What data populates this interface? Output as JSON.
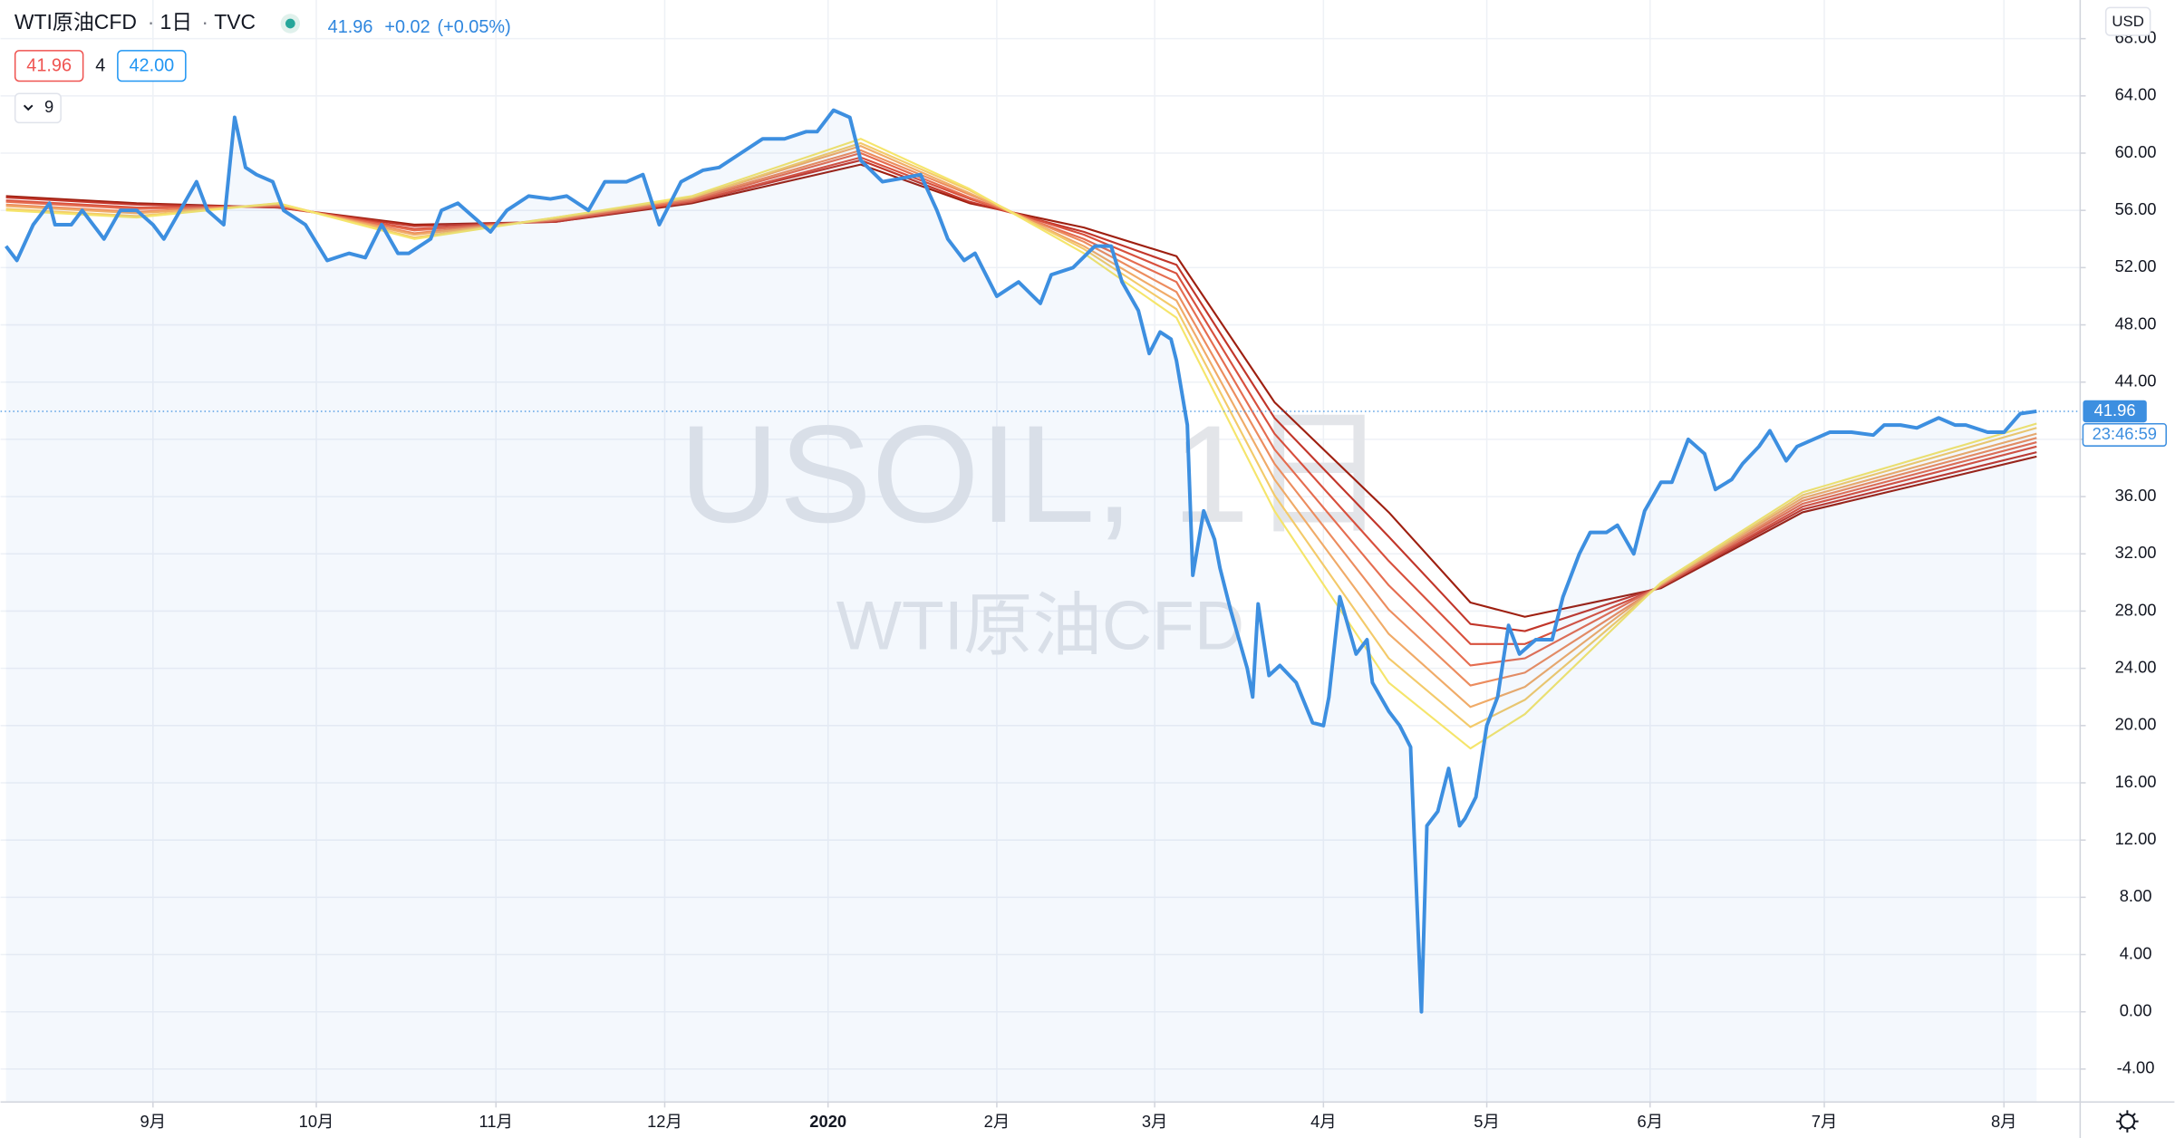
{
  "header": {
    "symbol": "WTI原油CFD",
    "interval": "1日",
    "exchange": "TVC",
    "price": "41.96",
    "change": "+0.02",
    "change_pct": "(+0.05%)",
    "bid": "41.96",
    "spread": "4",
    "ask": "42.00",
    "indicator_count": "9",
    "currency": "USD",
    "countdown": "23:46:59",
    "watermark_title": "USOIL, 1日",
    "watermark_subtitle": "WTI原油CFD"
  },
  "chart_data": {
    "type": "line",
    "xlim": [
      3,
      385
    ],
    "ylim": [
      -6.3,
      70.7
    ],
    "xticks": [
      {
        "value": 31,
        "label": "9月"
      },
      {
        "value": 61,
        "label": "10月"
      },
      {
        "value": 94,
        "label": "11月"
      },
      {
        "value": 125,
        "label": "12月"
      },
      {
        "value": 155,
        "label": "2020"
      },
      {
        "value": 186,
        "label": "2月"
      },
      {
        "value": 215,
        "label": "3月"
      },
      {
        "value": 246,
        "label": "4月"
      },
      {
        "value": 276,
        "label": "5月"
      },
      {
        "value": 306,
        "label": "6月"
      },
      {
        "value": 338,
        "label": "7月"
      },
      {
        "value": 371,
        "label": "8月"
      }
    ],
    "yticks": [
      {
        "value": -4,
        "label": "-4.00"
      },
      {
        "value": 0,
        "label": "0.00"
      },
      {
        "value": 4,
        "label": "4.00"
      },
      {
        "value": 8,
        "label": "8.00"
      },
      {
        "value": 12,
        "label": "12.00"
      },
      {
        "value": 16,
        "label": "16.00"
      },
      {
        "value": 20,
        "label": "20.00"
      },
      {
        "value": 24,
        "label": "24.00"
      },
      {
        "value": 28,
        "label": "28.00"
      },
      {
        "value": 32,
        "label": "32.00"
      },
      {
        "value": 36,
        "label": "36.00"
      },
      {
        "value": 40,
        "label": "40.00"
      },
      {
        "value": 44,
        "label": "44.00"
      },
      {
        "value": 48,
        "label": "48.00"
      },
      {
        "value": 52,
        "label": "52.00"
      },
      {
        "value": 56,
        "label": "56.00"
      },
      {
        "value": 60,
        "label": "60.00"
      },
      {
        "value": 64,
        "label": "64.00"
      },
      {
        "value": 68,
        "label": "68.00"
      }
    ],
    "grid": true,
    "last_price": 41.96,
    "series": [
      {
        "color": "#3d8fe0",
        "area": true,
        "x": [
          4,
          6,
          9,
          12,
          13,
          16,
          18,
          22,
          25,
          28,
          31,
          33,
          36,
          39,
          41,
          44,
          46,
          48,
          50,
          53,
          55,
          59,
          63,
          67,
          70,
          73,
          76,
          78,
          82,
          84,
          87,
          90,
          93,
          96,
          100,
          104,
          107,
          111,
          114,
          118,
          121,
          124,
          128,
          132,
          135,
          139,
          143,
          147,
          151,
          153,
          156,
          159,
          161,
          165,
          168,
          172,
          175,
          177,
          180,
          182,
          186,
          190,
          194,
          196,
          200,
          204,
          207,
          209,
          212,
          214,
          216,
          218,
          219,
          221,
          222,
          224,
          226,
          227,
          229,
          232,
          233,
          234,
          236,
          238,
          241,
          244,
          246,
          247,
          249,
          252,
          254,
          255,
          258,
          260,
          262,
          264,
          265,
          267,
          269,
          271,
          272,
          274,
          276,
          278,
          280,
          282,
          285,
          288,
          290,
          293,
          295,
          298,
          300,
          303,
          305,
          308,
          310,
          313,
          316,
          318,
          321,
          323,
          326,
          328,
          331,
          333,
          336,
          339,
          343,
          347,
          349,
          352,
          355,
          359,
          362,
          364,
          368,
          371,
          374,
          377
        ],
        "values": [
          53.5,
          52.5,
          55,
          56.5,
          55,
          55,
          56,
          54,
          56,
          56,
          55,
          54,
          56,
          58,
          56,
          55,
          62.5,
          59,
          58.5,
          58,
          56,
          55,
          52.5,
          53,
          52.7,
          55,
          53,
          53,
          54,
          56,
          56.5,
          55.5,
          54.5,
          56,
          57,
          56.8,
          57,
          56,
          58,
          58,
          58.5,
          55,
          58,
          58.8,
          59,
          60,
          61,
          61,
          61.5,
          61.5,
          63,
          62.5,
          59.5,
          58,
          58.2,
          58.5,
          56,
          54,
          52.5,
          53,
          50,
          51,
          49.5,
          51.5,
          52,
          53.5,
          53.5,
          51,
          49,
          46,
          47.5,
          47,
          45.5,
          41,
          30.5,
          35,
          33,
          31,
          28,
          24,
          22,
          28.5,
          23.5,
          24.2,
          23,
          20.2,
          20,
          22,
          29,
          25,
          26,
          23,
          21,
          20,
          18.5,
          0,
          13,
          14,
          17,
          13,
          13.5,
          15,
          20,
          22,
          27,
          25,
          26,
          26,
          29,
          32,
          33.5,
          33.5,
          34,
          32,
          35,
          37,
          37,
          40,
          39,
          36.5,
          37.2,
          38.3,
          39.5,
          40.6,
          38.5,
          39.5,
          40,
          40.5,
          40.5,
          40.3,
          41,
          41,
          40.8,
          41.5,
          41,
          41,
          40.5,
          40.5,
          41.8,
          41.96
        ]
      },
      {
        "color": "#f5e56b",
        "x": [
          4,
          28,
          54,
          79,
          105,
          130,
          161,
          181,
          202,
          219,
          237,
          258,
          273,
          283,
          308,
          334,
          377
        ],
        "values": [
          56,
          55.5,
          56.5,
          54,
          55.5,
          57,
          61,
          57.5,
          53,
          48.5,
          35,
          23,
          18.4,
          20.8,
          30,
          36.3,
          41.1
        ]
      },
      {
        "color": "#f3ca6a",
        "x": [
          4,
          28,
          54,
          79,
          105,
          130,
          161,
          181,
          202,
          219,
          237,
          258,
          273,
          283,
          308,
          334,
          377
        ],
        "values": [
          56.1,
          55.6,
          56.5,
          54.1,
          55.5,
          56.9,
          60.7,
          57.4,
          53.3,
          49.1,
          36.1,
          24.7,
          19.9,
          21.8,
          29.9,
          36.1,
          40.8
        ]
      },
      {
        "color": "#f0ab68",
        "x": [
          4,
          28,
          54,
          79,
          105,
          130,
          161,
          181,
          202,
          219,
          237,
          258,
          273,
          283,
          308,
          334,
          377
        ],
        "values": [
          56.3,
          55.8,
          56.4,
          54.3,
          55.4,
          56.9,
          60.5,
          57.2,
          53.5,
          49.7,
          37.2,
          26.4,
          21.3,
          22.7,
          29.9,
          35.9,
          40.4
        ]
      },
      {
        "color": "#ec8c5e",
        "x": [
          4,
          28,
          54,
          79,
          105,
          130,
          161,
          181,
          202,
          219,
          237,
          258,
          273,
          283,
          308,
          334,
          377
        ],
        "values": [
          56.4,
          55.9,
          56.4,
          54.4,
          55.4,
          56.8,
          60.2,
          57.1,
          53.8,
          50.3,
          38.3,
          28.1,
          22.8,
          23.7,
          29.8,
          35.7,
          40.1
        ]
      },
      {
        "color": "#e56d50",
        "x": [
          4,
          28,
          54,
          79,
          105,
          130,
          161,
          181,
          202,
          219,
          237,
          258,
          273,
          283,
          308,
          334,
          377
        ],
        "values": [
          56.6,
          56.1,
          56.3,
          54.6,
          55.3,
          56.7,
          60,
          56.9,
          54,
          51,
          39.3,
          29.8,
          24.2,
          24.7,
          29.8,
          35.5,
          39.8
        ]
      },
      {
        "color": "#d8503d",
        "x": [
          4,
          28,
          54,
          79,
          105,
          130,
          161,
          181,
          202,
          219,
          237,
          258,
          273,
          283,
          308,
          334,
          377
        ],
        "values": [
          56.7,
          56.2,
          56.3,
          54.7,
          55.3,
          56.6,
          59.7,
          56.8,
          54.3,
          51.6,
          40.4,
          31.5,
          25.7,
          25.7,
          29.7,
          35.3,
          39.5
        ]
      },
      {
        "color": "#c2362a",
        "x": [
          4,
          28,
          54,
          79,
          105,
          130,
          161,
          181,
          202,
          219,
          237,
          258,
          273,
          283,
          308,
          334,
          377
        ],
        "values": [
          56.9,
          56.4,
          56.2,
          54.9,
          55.2,
          56.6,
          59.5,
          56.6,
          54.5,
          52.2,
          41.5,
          33.2,
          27.1,
          26.6,
          29.7,
          35.1,
          39.1
        ]
      },
      {
        "color": "#9e1f10",
        "x": [
          4,
          28,
          54,
          79,
          105,
          130,
          161,
          181,
          202,
          219,
          237,
          258,
          273,
          283,
          308,
          334,
          377
        ],
        "values": [
          57,
          56.5,
          56.2,
          55,
          55.2,
          56.5,
          59.2,
          56.5,
          54.8,
          52.8,
          42.6,
          34.9,
          28.6,
          27.6,
          29.6,
          34.9,
          38.8
        ]
      }
    ]
  }
}
